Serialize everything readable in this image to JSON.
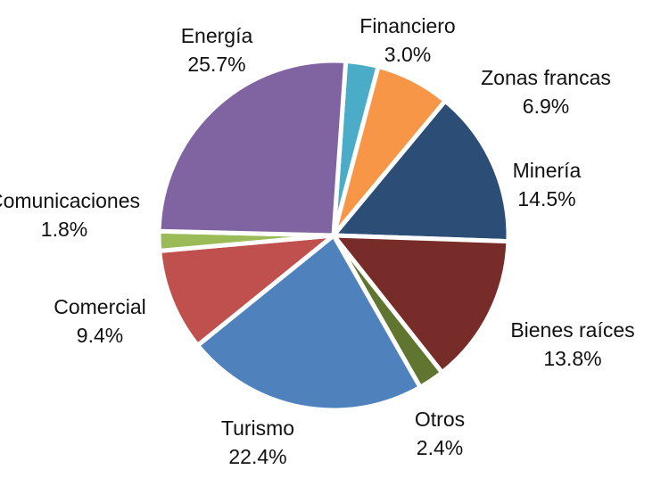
{
  "chart_data": {
    "type": "pie",
    "slices": [
      {
        "label": "Financiero",
        "value": 3.0,
        "value_text": "3.0%",
        "color": "#4AACC6"
      },
      {
        "label": "Zonas francas",
        "value": 6.9,
        "value_text": "6.9%",
        "color": "#F79646"
      },
      {
        "label": "Minería",
        "value": 14.5,
        "value_text": "14.5%",
        "color": "#2C4D75"
      },
      {
        "label": "Bienes raíces",
        "value": 13.8,
        "value_text": "13.8%",
        "color": "#772C2A"
      },
      {
        "label": "Otros",
        "value": 2.4,
        "value_text": "2.4%",
        "color": "#5F7530"
      },
      {
        "label": "Turismo",
        "value": 22.4,
        "value_text": "22.4%",
        "color": "#4F81BD"
      },
      {
        "label": "Comercial",
        "value": 9.4,
        "value_text": "9.4%",
        "color": "#C0504D"
      },
      {
        "label": "Comunicaciones",
        "value": 1.8,
        "value_text": "1.8%",
        "color": "#9BBB59"
      },
      {
        "label": "Energía",
        "value": 25.7,
        "value_text": "25.7%",
        "color": "#8064A2"
      }
    ]
  }
}
